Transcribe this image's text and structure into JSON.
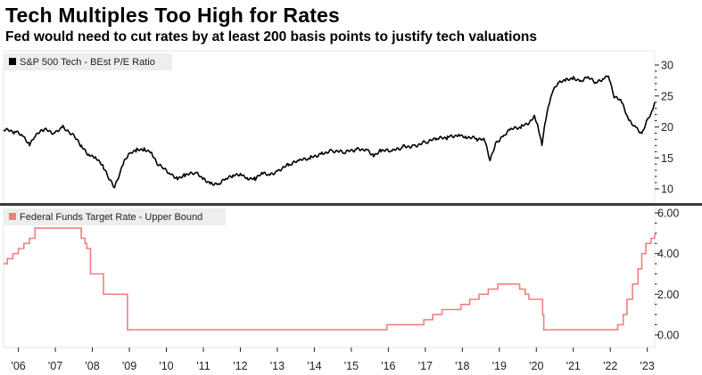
{
  "header": {
    "title": "Tech Multiples Too High for Rates",
    "subtitle": "Fed would need to cut rates by at least 200 basis points to justify tech valuations"
  },
  "chart_data": [
    {
      "type": "line",
      "panel": "top",
      "legend": "top-left",
      "grid": false,
      "xlim": [
        2005.6,
        2023.2
      ],
      "ylim": [
        8,
        31.5
      ],
      "yticks": [
        10,
        15,
        20,
        25,
        30
      ],
      "series": [
        {
          "name": "S&P 500 Tech - BEst P/E Ratio",
          "color": "#000000",
          "x": [
            2005.6,
            2005.9,
            2006.1,
            2006.3,
            2006.45,
            2006.7,
            2007.0,
            2007.2,
            2007.35,
            2007.5,
            2007.7,
            2007.9,
            2008.1,
            2008.3,
            2008.45,
            2008.6,
            2008.75,
            2008.85,
            2009.0,
            2009.2,
            2009.4,
            2009.6,
            2009.75,
            2009.9,
            2010.1,
            2010.3,
            2010.5,
            2010.8,
            2011.0,
            2011.2,
            2011.4,
            2011.6,
            2011.8,
            2012.0,
            2012.2,
            2012.4,
            2012.6,
            2012.8,
            2013.0,
            2013.3,
            2013.6,
            2013.9,
            2014.2,
            2014.5,
            2014.8,
            2015.1,
            2015.4,
            2015.6,
            2015.8,
            2016.1,
            2016.4,
            2016.7,
            2017.0,
            2017.3,
            2017.6,
            2017.9,
            2018.1,
            2018.4,
            2018.6,
            2018.75,
            2018.9,
            2019.1,
            2019.3,
            2019.6,
            2019.85,
            2019.95,
            2020.05,
            2020.15,
            2020.25,
            2020.35,
            2020.45,
            2020.6,
            2020.8,
            2021.0,
            2021.2,
            2021.4,
            2021.6,
            2021.8,
            2021.95,
            2022.1,
            2022.3,
            2022.5,
            2022.7,
            2022.85,
            2023.0,
            2023.15,
            2023.2
          ],
          "y": [
            19.5,
            19.2,
            18.8,
            17.3,
            18.6,
            19.5,
            19.0,
            20.2,
            19.3,
            18.5,
            16.8,
            15.6,
            15.2,
            13.5,
            11.5,
            10.2,
            12.8,
            14.5,
            15.5,
            16.2,
            16.5,
            16.0,
            14.0,
            13.3,
            12.5,
            11.8,
            12.2,
            12.5,
            11.5,
            11.0,
            10.8,
            11.5,
            12.0,
            12.5,
            11.8,
            11.6,
            12.4,
            12.2,
            13.0,
            13.8,
            14.5,
            15.0,
            15.8,
            16.2,
            15.8,
            16.3,
            16.5,
            15.5,
            16.2,
            16.0,
            16.8,
            17.0,
            17.5,
            18.0,
            18.3,
            18.8,
            18.5,
            18.0,
            17.8,
            14.5,
            17.5,
            18.5,
            19.5,
            20.0,
            21.0,
            22.0,
            20.0,
            17.0,
            21.0,
            24.0,
            26.0,
            27.0,
            27.5,
            28.0,
            27.5,
            28.0,
            27.0,
            27.8,
            28.5,
            25.0,
            24.0,
            21.0,
            20.0,
            19.0,
            21.0,
            22.5,
            24.0
          ]
        }
      ]
    },
    {
      "type": "line",
      "panel": "bottom",
      "legend": "top-left",
      "grid": false,
      "xlim": [
        2005.6,
        2023.2
      ],
      "ylim": [
        -0.3,
        6.2
      ],
      "yticks": [
        0,
        2,
        4,
        6
      ],
      "ytick_labels": [
        "0.00",
        "2.00",
        "4.00",
        "6.00"
      ],
      "xticks": [
        2006,
        2007,
        2008,
        2009,
        2010,
        2011,
        2012,
        2013,
        2014,
        2015,
        2016,
        2017,
        2018,
        2019,
        2020,
        2021,
        2022,
        2023
      ],
      "xtick_labels": [
        "'06",
        "'07",
        "'08",
        "'09",
        "'10",
        "'11",
        "'12",
        "'13",
        "'14",
        "'15",
        "'16",
        "'17",
        "'18",
        "'19",
        "'20",
        "'21",
        "'22",
        "'23"
      ],
      "series": [
        {
          "name": "Federal Funds Target Rate - Upper Bound",
          "color": "#f08080",
          "step": true,
          "x": [
            2005.6,
            2005.7,
            2005.85,
            2006.0,
            2006.15,
            2006.3,
            2006.45,
            2007.7,
            2007.8,
            2007.85,
            2007.95,
            2008.05,
            2008.3,
            2008.45,
            2008.95,
            2015.96,
            2016.96,
            2017.2,
            2017.45,
            2017.96,
            2018.2,
            2018.45,
            2018.7,
            2018.96,
            2019.55,
            2019.7,
            2019.8,
            2020.17,
            2020.2,
            2022.2,
            2022.35,
            2022.45,
            2022.6,
            2022.75,
            2022.85,
            2022.96,
            2023.1,
            2023.2
          ],
          "y": [
            3.5,
            3.75,
            4.0,
            4.25,
            4.5,
            4.75,
            5.25,
            4.75,
            4.5,
            4.25,
            3.0,
            3.0,
            2.0,
            2.0,
            0.25,
            0.5,
            0.75,
            1.0,
            1.25,
            1.5,
            1.75,
            2.0,
            2.25,
            2.5,
            2.25,
            2.0,
            1.75,
            1.0,
            0.25,
            0.5,
            1.0,
            1.75,
            2.5,
            3.25,
            4.0,
            4.5,
            4.75,
            5.0
          ]
        }
      ]
    }
  ]
}
